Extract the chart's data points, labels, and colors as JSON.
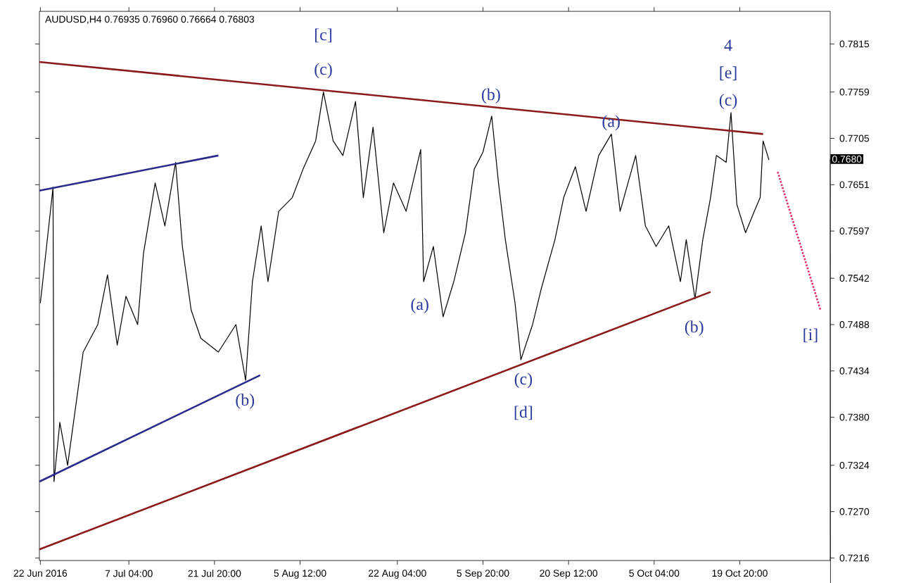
{
  "chart_data": {
    "type": "line",
    "title": "AUDUSD,H4  0.76935 0.76960 0.76664 0.76803",
    "x": [
      "2016-06-22T00:00",
      "2016-06-24T04:00",
      "2016-06-24T08:00",
      "2016-06-25T08:00",
      "2016-06-26T16:00",
      "2016-06-29T08:00",
      "2016-07-01T20:00",
      "2016-07-03T12:00",
      "2016-07-05T04:00",
      "2016-07-06T16:00",
      "2016-07-08T16:00",
      "2016-07-09T16:00",
      "2016-07-11T16:00",
      "2016-07-13T08:00",
      "2016-07-15T04:00",
      "2016-07-16T08:00",
      "2016-07-17T20:00",
      "2016-07-19T12:00",
      "2016-07-22T12:00",
      "2016-07-25T12:00",
      "2016-07-27T04:00",
      "2016-07-28T08:00",
      "2016-07-29T20:00",
      "2016-07-31T00:00",
      "2016-08-01T20:00",
      "2016-08-04T04:00",
      "2016-08-06T00:00",
      "2016-08-08T04:00",
      "2016-08-09T12:00",
      "2016-08-11T04:00",
      "2016-08-12T20:00",
      "2016-08-15T00:00",
      "2016-08-16T08:00",
      "2016-08-18T00:00",
      "2016-08-19T20:00",
      "2016-08-21T12:00",
      "2016-08-23T16:00",
      "2016-08-26T04:00",
      "2016-08-26T16:00",
      "2016-08-28T08:00",
      "2016-08-30T00:00",
      "2016-08-31T20:00",
      "2016-09-02T20:00",
      "2016-09-04T08:00",
      "2016-09-05T20:00",
      "2016-09-07T08:00",
      "2016-09-08T12:00",
      "2016-09-09T16:00",
      "2016-09-11T08:00",
      "2016-09-12T08:00",
      "2016-09-14T08:00",
      "2016-09-15T20:00",
      "2016-09-18T04:00",
      "2016-09-19T16:00",
      "2016-09-21T16:00",
      "2016-09-23T12:00",
      "2016-09-25T16:00",
      "2016-09-27T20:00",
      "2016-09-29T08:00",
      "2016-10-02T00:00",
      "2016-10-03T16:00",
      "2016-10-05T12:00",
      "2016-10-07T16:00",
      "2016-10-09T16:00",
      "2016-10-10T16:00",
      "2016-10-12T04:00",
      "2016-10-13T12:00",
      "2016-10-14T20:00",
      "2016-10-15T20:00",
      "2016-10-17T12:00",
      "2016-10-18T08:00",
      "2016-10-19T08:00",
      "2016-10-20T20:00",
      "2016-10-22T08:00",
      "2016-10-23T08:00",
      "2016-10-23T20:00",
      "2016-10-24T20:00"
    ],
    "series": [
      {
        "color": "#000000",
        "values": [
          0.7513,
          0.7648,
          0.7305,
          0.7374,
          0.7324,
          0.7456,
          0.7488,
          0.7546,
          0.7464,
          0.7521,
          0.7488,
          0.7571,
          0.7653,
          0.7603,
          0.7677,
          0.7579,
          0.7505,
          0.7472,
          0.7456,
          0.7488,
          0.7423,
          0.7538,
          0.7603,
          0.7538,
          0.762,
          0.7636,
          0.7669,
          0.7702,
          0.7759,
          0.7702,
          0.7685,
          0.7748,
          0.7636,
          0.7718,
          0.7595,
          0.7653,
          0.762,
          0.7692,
          0.7538,
          0.7579,
          0.7497,
          0.7538,
          0.7595,
          0.7669,
          0.7689,
          0.7731,
          0.7653,
          0.7587,
          0.7513,
          0.7447,
          0.7488,
          0.753,
          0.7587,
          0.7636,
          0.7672,
          0.762,
          0.7685,
          0.771,
          0.762,
          0.7685,
          0.7603,
          0.7579,
          0.7603,
          0.7538,
          0.7587,
          0.7518,
          0.7587,
          0.7636,
          0.7685,
          0.7677,
          0.7735,
          0.7628,
          0.7595,
          0.762,
          0.7636,
          0.7702,
          0.768
        ]
      },
      {
        "type": "line",
        "color": "#8b1a1a",
        "x": [
          "2016-06-21T20:00",
          "2016-10-23T20:00"
        ],
        "values": [
          0.7794,
          0.771
        ]
      },
      {
        "type": "line",
        "color": "#8b1a1a",
        "x": [
          "2016-06-21T20:00",
          "2016-10-14T20:00"
        ],
        "values": [
          0.7226,
          0.7526
        ]
      },
      {
        "type": "line",
        "color": "#2b2b8b",
        "x": [
          "2016-06-21T20:00",
          "2016-07-22T12:00"
        ],
        "values": [
          0.7644,
          0.7685
        ]
      },
      {
        "type": "line",
        "color": "#2b2b8b",
        "x": [
          "2016-06-21T20:00",
          "2016-07-29T16:00"
        ],
        "values": [
          0.7305,
          0.7429
        ]
      },
      {
        "type": "line",
        "color": "#e0306b",
        "line_style": "dotted",
        "x": [
          "2016-10-26T08:00",
          "2016-11-02T16:00"
        ],
        "values": [
          0.7666,
          0.7505
        ]
      }
    ],
    "xlim": [
      "2016-06-21T20:00",
      "2016-11-04T08:00"
    ],
    "xticks": [
      {
        "value": "2016-06-22T00:00",
        "label": "22 Jun 2016"
      },
      {
        "value": "2016-07-07T04:00",
        "label": "7 Jul 04:00"
      },
      {
        "value": "2016-07-21T20:00",
        "label": "21 Jul 20:00"
      },
      {
        "value": "2016-08-05T12:00",
        "label": "5 Aug 12:00"
      },
      {
        "value": "2016-08-22T04:00",
        "label": "22 Aug 04:00"
      },
      {
        "value": "2016-09-05T20:00",
        "label": "5 Sep 20:00"
      },
      {
        "value": "2016-09-20T12:00",
        "label": "20 Sep 12:00"
      },
      {
        "value": "2016-10-05T04:00",
        "label": "5 Oct 04:00"
      },
      {
        "value": "2016-10-19T20:00",
        "label": "19 Oct 20:00"
      }
    ],
    "ylim": [
      0.7213,
      0.7853
    ],
    "yticks": [
      {
        "value": 0.7216,
        "label": "0.7216"
      },
      {
        "value": 0.727,
        "label": "0.7270"
      },
      0.7324,
      {
        "value": 0.738,
        "label": "0.7380"
      },
      0.7434,
      0.7488,
      0.7542,
      0.7597,
      0.7651,
      0.7705,
      0.7759,
      0.7815
    ],
    "annotations": [
      "[c]",
      "(c)",
      "(b)",
      "(a)",
      "(b)",
      "(c)",
      "[d]",
      "(a)",
      "(b)",
      "4",
      "[e]",
      "(c)",
      "[i]",
      "0.7680"
    ],
    "grid": false
  }
}
